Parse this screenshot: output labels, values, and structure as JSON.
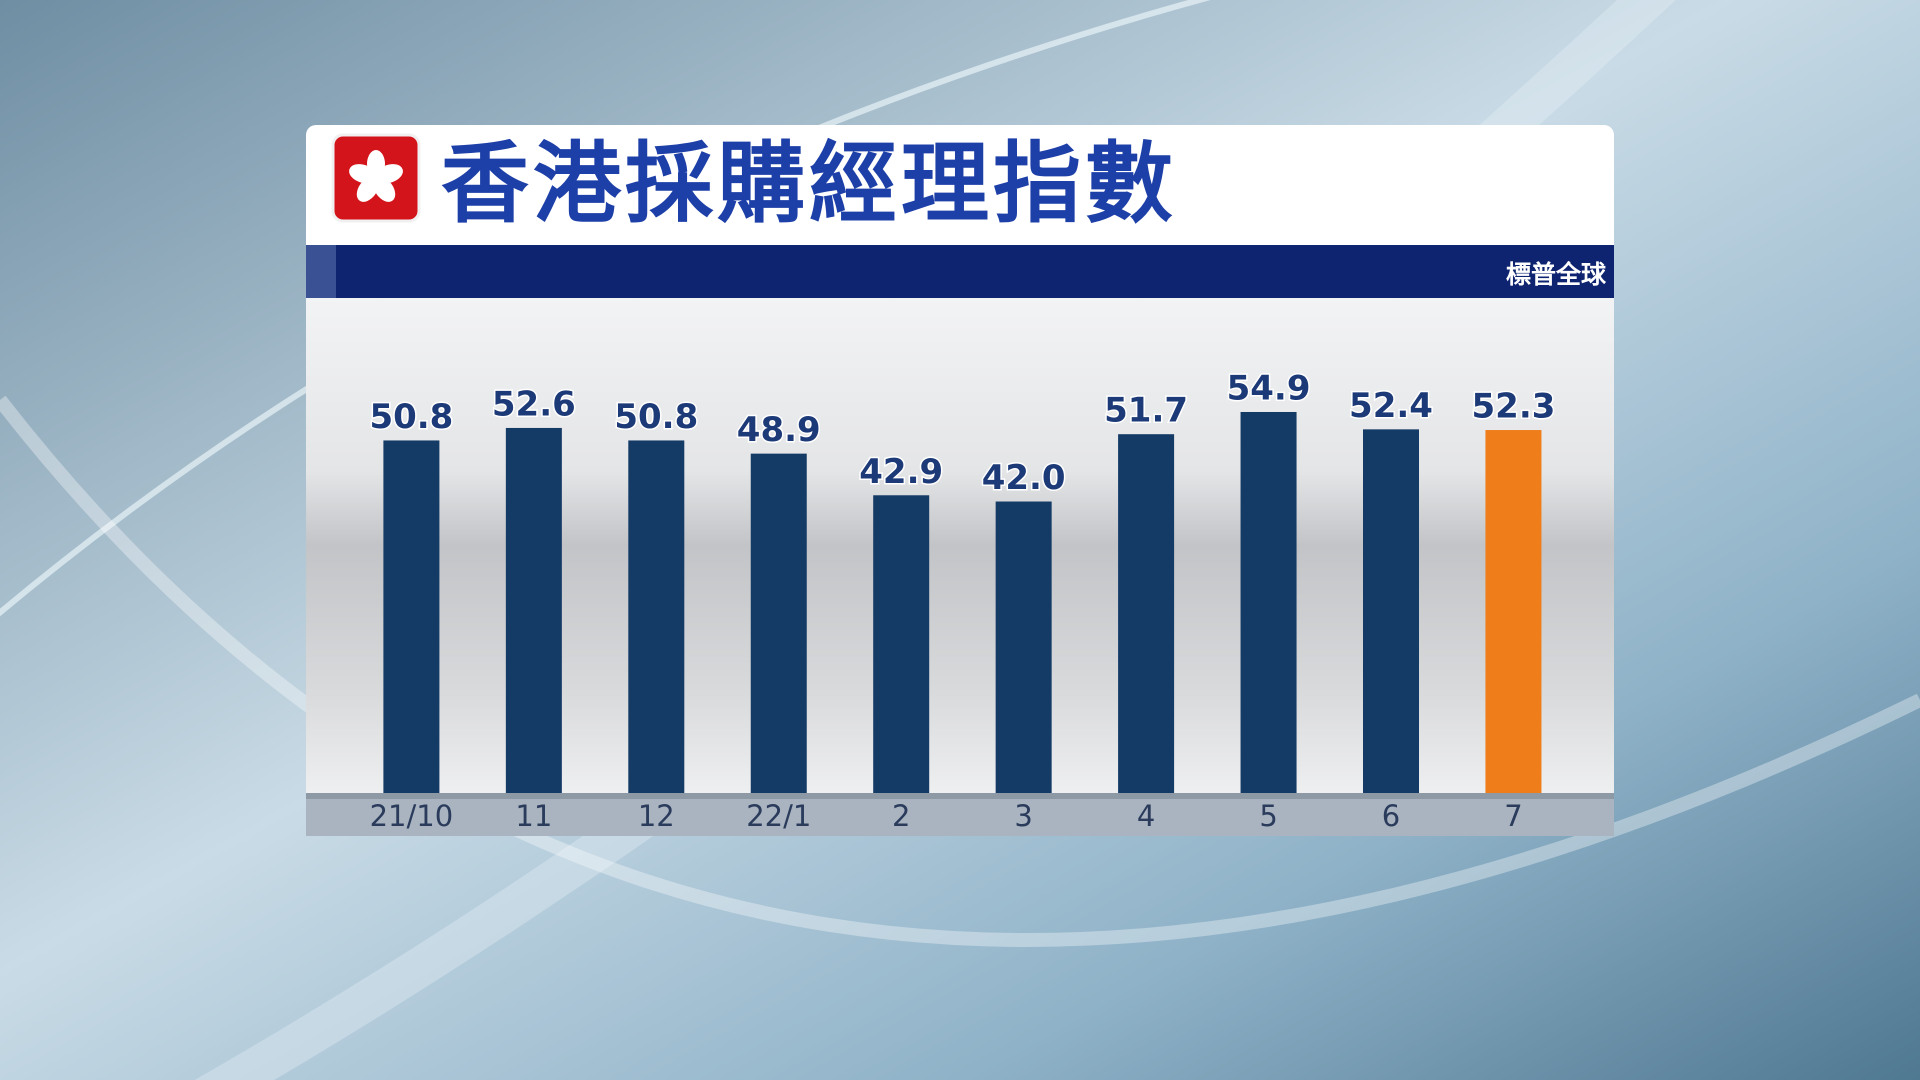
{
  "chart_data": {
    "type": "bar",
    "title": "香港採購經理指數",
    "source": "標普全球",
    "categories": [
      "21/10",
      "11",
      "12",
      "22/1",
      "2",
      "3",
      "4",
      "5",
      "6",
      "7"
    ],
    "values": [
      50.8,
      52.6,
      50.8,
      48.9,
      42.9,
      42.0,
      51.7,
      54.9,
      52.4,
      52.3
    ],
    "value_labels": [
      "50.8",
      "52.6",
      "50.8",
      "48.9",
      "42.9",
      "42.0",
      "51.7",
      "54.9",
      "52.4",
      "52.3"
    ],
    "colors": [
      "#143a66",
      "#143a66",
      "#143a66",
      "#143a66",
      "#143a66",
      "#143a66",
      "#143a66",
      "#143a66",
      "#143a66",
      "#ee7d1a"
    ]
  }
}
